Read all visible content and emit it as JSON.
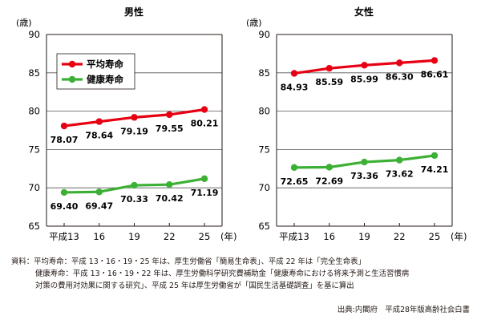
{
  "chart_data": [
    {
      "type": "line",
      "title": "男性",
      "ylabel": "(歳)",
      "ylim": [
        65,
        90
      ],
      "yticks": [
        65,
        70,
        75,
        80,
        85,
        90
      ],
      "categories": [
        "平成13",
        "16",
        "19",
        "22",
        "25"
      ],
      "x_unit": "(年)",
      "grid": true,
      "legend": {
        "position": "top-left",
        "entries": [
          "平均寿命",
          "健康寿命"
        ]
      },
      "series": [
        {
          "name": "平均寿命",
          "color": "#e60012",
          "values": [
            78.07,
            78.64,
            79.19,
            79.55,
            80.21
          ],
          "labels": [
            "78.07",
            "78.64",
            "79.19",
            "79.55",
            "80.21"
          ]
        },
        {
          "name": "健康寿命",
          "color": "#3cb034",
          "values": [
            69.4,
            69.47,
            70.33,
            70.42,
            71.19
          ],
          "labels": [
            "69.40",
            "69.47",
            "70.33",
            "70.42",
            "71.19"
          ]
        }
      ]
    },
    {
      "type": "line",
      "title": "女性",
      "ylabel": "(歳)",
      "ylim": [
        65,
        90
      ],
      "yticks": [
        65,
        70,
        75,
        80,
        85,
        90
      ],
      "categories": [
        "平成13",
        "16",
        "19",
        "22",
        "25"
      ],
      "x_unit": "(年)",
      "grid": true,
      "series": [
        {
          "name": "平均寿命",
          "color": "#e60012",
          "values": [
            84.93,
            85.59,
            85.99,
            86.3,
            86.61
          ],
          "labels": [
            "84.93",
            "85.59",
            "85.99",
            "86.30",
            "86.61"
          ]
        },
        {
          "name": "健康寿命",
          "color": "#3cb034",
          "values": [
            72.65,
            72.69,
            73.36,
            73.62,
            74.21
          ],
          "labels": [
            "72.65",
            "72.69",
            "73.36",
            "73.62",
            "74.21"
          ]
        }
      ]
    }
  ],
  "notes": {
    "line1": "資料：平均寿命：平成 13・16・19・25 年は、厚生労働省「簡易生命表」、平成 22 年は「完全生命表」",
    "line2": "健康寿命：平成 13・16・19・22 年は、厚生労働科学研究費補助金「健康寿命における将来予測と生活習慣病",
    "line3": "対策の費用対効果に関する研究」、平成 25 年は厚生労働省が「国民生活基礎調査」を基に算出",
    "source": "出典:内閣府　平成28年版高齢社会白書"
  }
}
